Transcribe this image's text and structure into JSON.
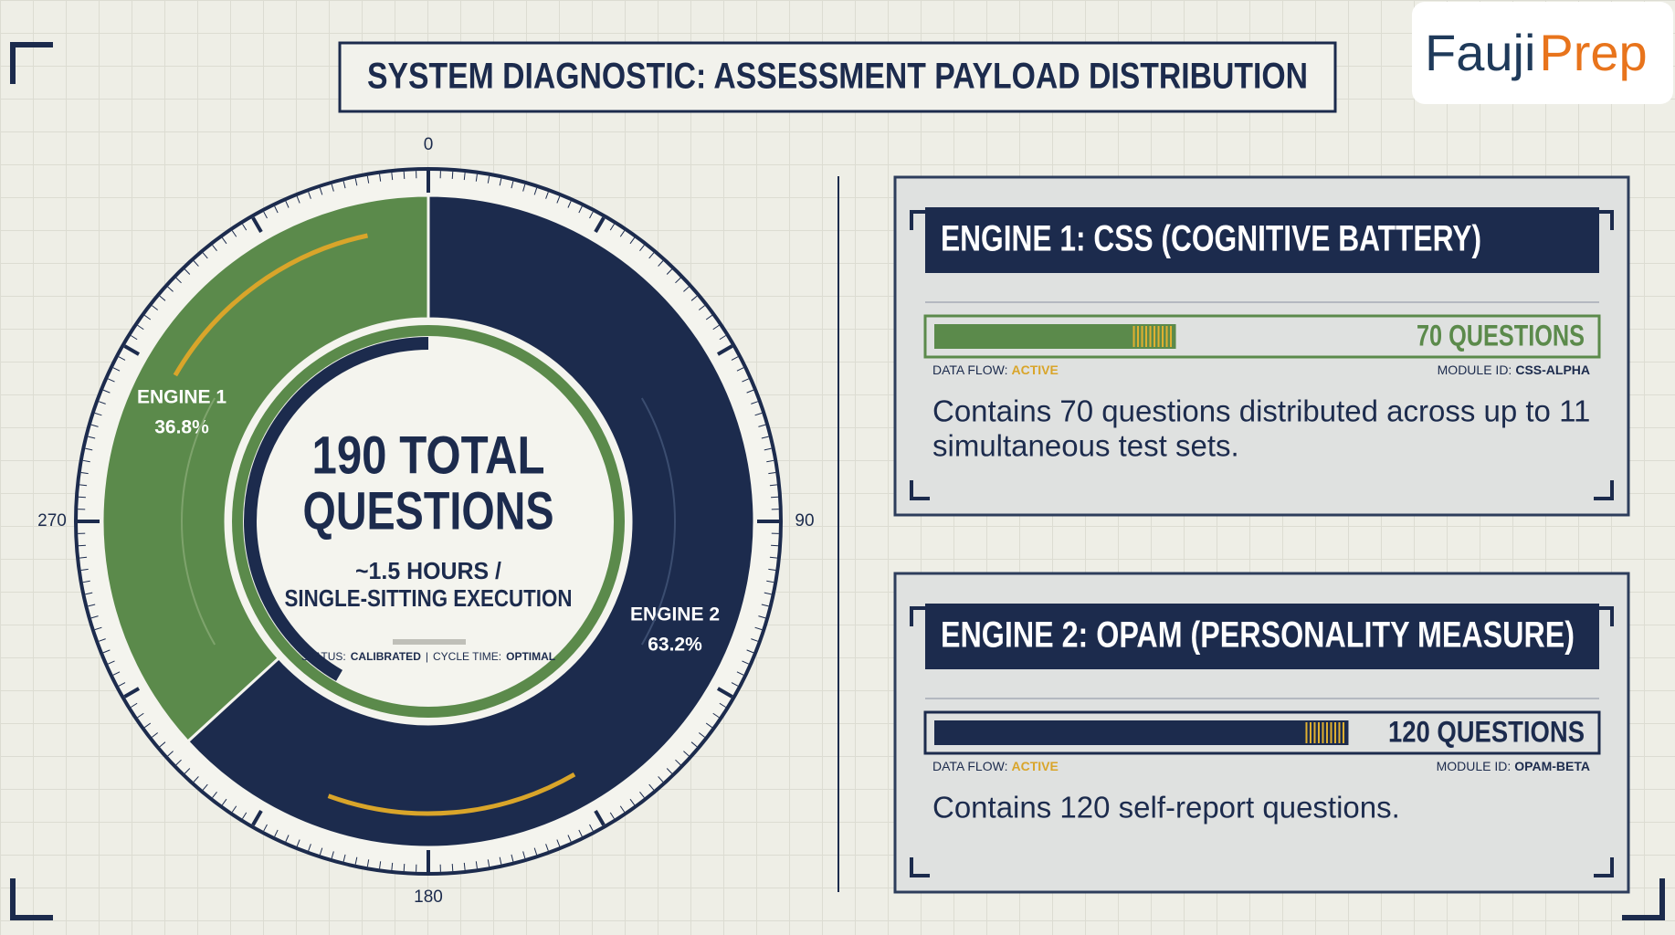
{
  "header": {
    "title": "SYSTEM DIAGNOSTIC: ASSESSMENT PAYLOAD DISTRIBUTION"
  },
  "logo": {
    "part1": "Fauji",
    "part2": "Prep"
  },
  "chart_data": {
    "type": "pie",
    "donut": true,
    "categories": [
      "ENGINE 1",
      "ENGINE 2"
    ],
    "values": [
      36.8,
      63.2
    ],
    "value_labels": [
      "36.8%",
      "63.2%"
    ],
    "colors": [
      "#5b8a4b",
      "#1c2b4d"
    ],
    "dial_ticks": [
      0,
      90,
      180,
      270
    ],
    "center_title": [
      "190 TOTAL",
      "QUESTIONS"
    ],
    "center_subtitle": [
      "~1.5 HOURS /",
      "SINGLE-SITTING EXECUTION"
    ],
    "status": {
      "label1": "STATUS:",
      "value1": "CALIBRATED",
      "separator": "|",
      "label2": "CYCLE TIME:",
      "value2": "OPTIMAL"
    }
  },
  "panels": [
    {
      "title": "ENGINE 1: CSS (COGNITIVE BATTERY)",
      "value": 70,
      "value_label": "70 QUESTIONS",
      "color": "#5b8a4b",
      "meta": {
        "flow_label": "DATA FLOW:",
        "flow_value": "ACTIVE",
        "module_label": "MODULE ID:",
        "module_value": "CSS-ALPHA"
      },
      "description": [
        "Contains 70 questions distributed across up to 11",
        "simultaneous test sets."
      ]
    },
    {
      "title": "ENGINE 2: OPAM (PERSONALITY MEASURE)",
      "value": 120,
      "value_label": "120 QUESTIONS",
      "color": "#1c2b4d",
      "meta": {
        "flow_label": "DATA FLOW:",
        "flow_value": "ACTIVE",
        "module_label": "MODULE ID:",
        "module_value": "OPAM-BETA"
      },
      "description": [
        "Contains 120 self-report questions."
      ]
    }
  ]
}
